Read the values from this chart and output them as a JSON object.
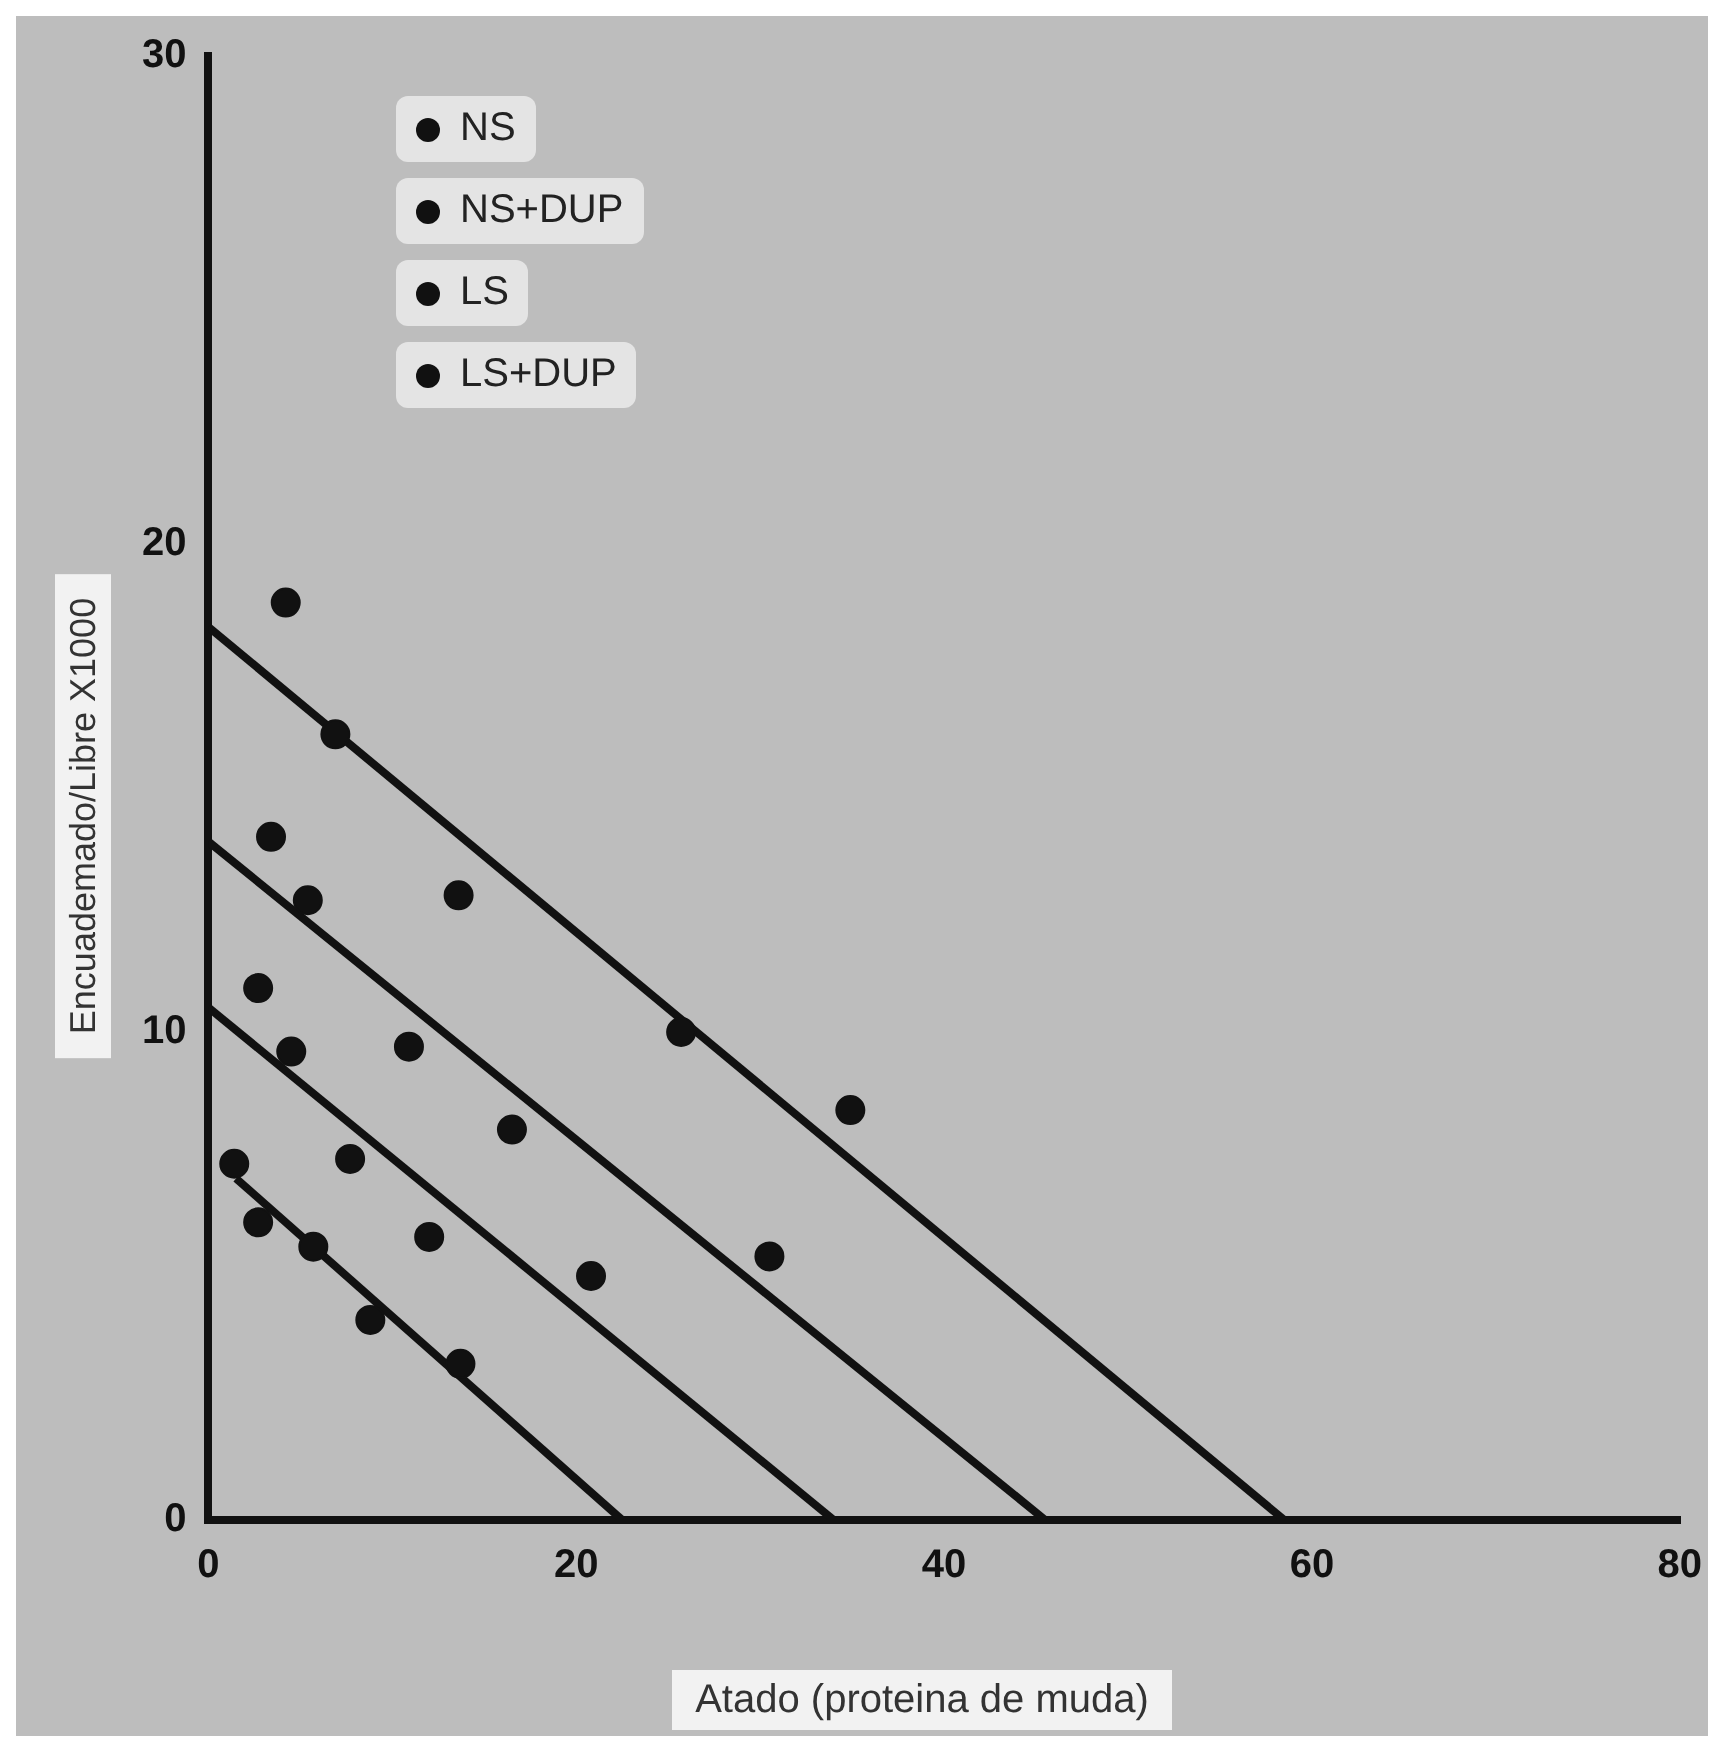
{
  "chart_data": {
    "type": "scatter",
    "xlabel": "Atado (proteina de muda)",
    "ylabel": "Encuademado/Libre X1000",
    "xlim": [
      0,
      80
    ],
    "ylim": [
      0,
      30
    ],
    "xticks": [
      0,
      20,
      40,
      60,
      80
    ],
    "yticks": [
      0,
      10,
      20,
      30
    ],
    "grid": false,
    "legend": "top left",
    "marker": "circle",
    "series": [
      {
        "name": "NS",
        "color": "#111111",
        "x": [
          4.2,
          6.9,
          13.6,
          25.7,
          34.9
        ],
        "values": [
          18.8,
          16.1,
          12.8,
          10.0,
          8.4
        ]
      },
      {
        "name": "NS+DUP",
        "color": "#111111",
        "x": [
          3.4,
          5.4,
          10.9,
          16.5,
          30.5
        ],
        "values": [
          14.0,
          12.7,
          9.7,
          8.0,
          5.4
        ]
      },
      {
        "name": "LS",
        "color": "#111111",
        "x": [
          2.7,
          4.5,
          7.7,
          12.0,
          20.8
        ],
        "values": [
          10.9,
          9.6,
          7.4,
          5.8,
          5.0
        ]
      },
      {
        "name": "LS+DUP",
        "color": "#111111",
        "x": [
          1.4,
          2.7,
          5.7,
          8.8,
          13.7
        ],
        "values": [
          7.3,
          6.1,
          5.6,
          4.1,
          3.2
        ]
      },
      {
        "type": "line",
        "marker": "none",
        "color": "#111111",
        "x": [
          0,
          58.5
        ],
        "values": [
          18.3,
          0
        ]
      },
      {
        "type": "line",
        "marker": "none",
        "color": "#111111",
        "x": [
          0,
          45.5
        ],
        "values": [
          13.9,
          0
        ]
      },
      {
        "type": "line",
        "marker": "none",
        "color": "#111111",
        "x": [
          0,
          34
        ],
        "values": [
          10.5,
          0
        ]
      },
      {
        "type": "line",
        "marker": "none",
        "color": "#111111",
        "x": [
          1.5,
          22.5
        ],
        "values": [
          7,
          0
        ]
      }
    ]
  }
}
